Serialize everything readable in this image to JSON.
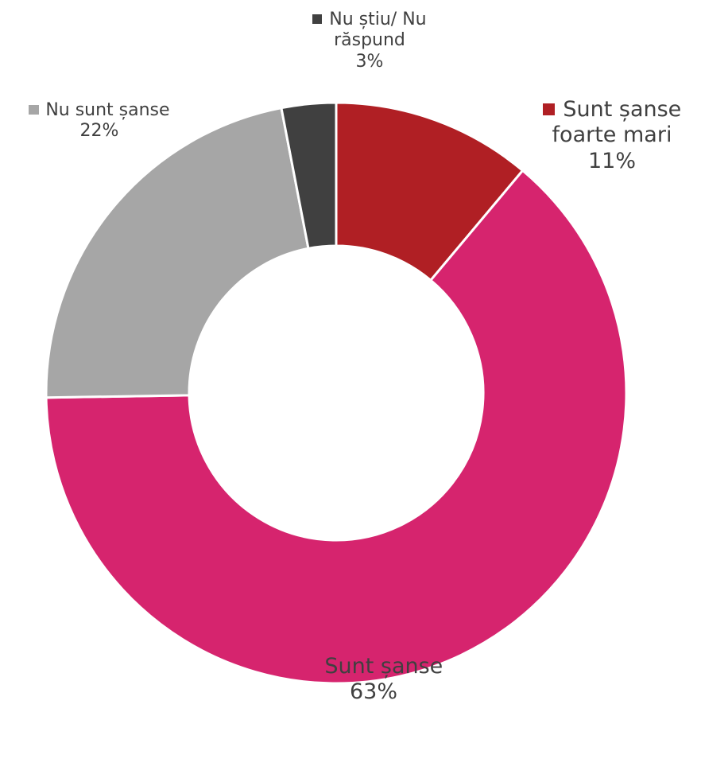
{
  "chart_data": {
    "type": "donut",
    "categories": [
      "Sunt șanse foarte mari",
      "Sunt șanse",
      "Nu sunt șanse",
      "Nu știu/ Nu răspund"
    ],
    "values": [
      11,
      63,
      22,
      3
    ],
    "value_labels": [
      "11%",
      "63%",
      "22%",
      "3%"
    ],
    "colors": [
      "#b01f24",
      "#d6246e",
      "#a6a6a6",
      "#404040"
    ]
  }
}
